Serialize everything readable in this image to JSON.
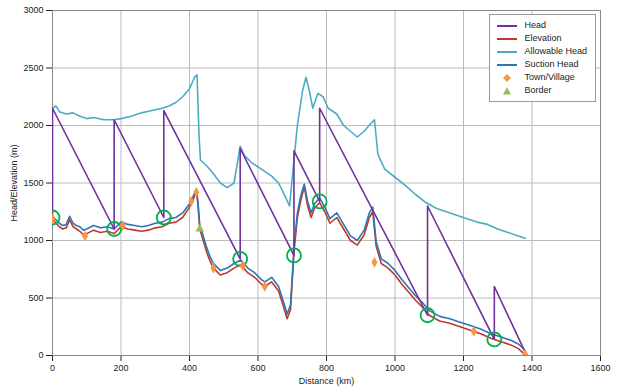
{
  "chart_data": {
    "type": "line",
    "x_label": "Distance (km)",
    "y_label": "Head/Elevation (m)",
    "xlim": [
      0,
      1600
    ],
    "xticks": [
      0,
      200,
      400,
      600,
      800,
      1000,
      1200,
      1400,
      1600
    ],
    "ylim": [
      0,
      3000
    ],
    "yticks": [
      0,
      500,
      1000,
      1500,
      2000,
      2500,
      3000
    ],
    "grid": true,
    "legend": "top-right",
    "series": [
      {
        "name": "Head",
        "color": "#7030a0",
        "type": "line",
        "x": [
          0,
          0,
          180,
          180,
          325,
          325,
          548,
          548,
          705,
          705,
          780,
          780,
          1095,
          1095,
          1290,
          1290,
          1380
        ],
        "values": [
          1200,
          2150,
          1100,
          2050,
          1200,
          2130,
          840,
          1800,
          870,
          1780,
          1340,
          2150,
          350,
          1300,
          140,
          600,
          30
        ]
      },
      {
        "name": "Elevation",
        "color": "#c0392b",
        "type": "line",
        "x": [
          0,
          10,
          20,
          30,
          40,
          50,
          60,
          70,
          80,
          90,
          100,
          120,
          140,
          160,
          180,
          200,
          220,
          240,
          260,
          280,
          300,
          320,
          340,
          360,
          380,
          400,
          410,
          420,
          425,
          430,
          440,
          450,
          460,
          470,
          490,
          510,
          530,
          550,
          570,
          590,
          610,
          620,
          640,
          660,
          675,
          685,
          695,
          705,
          715,
          725,
          735,
          745,
          755,
          765,
          780,
          795,
          810,
          830,
          850,
          870,
          890,
          910,
          925,
          935,
          945,
          960,
          980,
          1000,
          1020,
          1040,
          1060,
          1080,
          1100,
          1130,
          1160,
          1190,
          1220,
          1250,
          1280,
          1310,
          1340,
          1360,
          1375
        ],
        "values": [
          1190,
          1150,
          1120,
          1100,
          1110,
          1180,
          1120,
          1100,
          1080,
          1050,
          1060,
          1090,
          1070,
          1080,
          1060,
          1120,
          1100,
          1090,
          1080,
          1090,
          1110,
          1120,
          1150,
          1160,
          1200,
          1290,
          1350,
          1430,
          1300,
          1100,
          1000,
          900,
          820,
          760,
          700,
          720,
          760,
          790,
          720,
          680,
          620,
          600,
          640,
          560,
          420,
          320,
          400,
          900,
          1200,
          1350,
          1470,
          1300,
          1200,
          1280,
          1330,
          1250,
          1150,
          1200,
          1100,
          1000,
          960,
          1050,
          1200,
          1250,
          950,
          800,
          760,
          700,
          620,
          550,
          480,
          420,
          350,
          300,
          280,
          250,
          220,
          190,
          150,
          120,
          90,
          60,
          20
        ]
      },
      {
        "name": "Allowable Head",
        "color": "#4bacc6",
        "type": "line",
        "x": [
          0,
          10,
          20,
          40,
          60,
          80,
          100,
          120,
          150,
          180,
          200,
          230,
          260,
          290,
          320,
          340,
          360,
          380,
          400,
          415,
          422,
          428,
          432,
          450,
          470,
          490,
          510,
          530,
          548,
          560,
          580,
          610,
          640,
          660,
          680,
          692,
          705,
          715,
          730,
          740,
          750,
          760,
          775,
          790,
          805,
          830,
          850,
          870,
          890,
          910,
          930,
          940,
          950,
          970,
          1000,
          1030,
          1060,
          1090,
          1120,
          1150,
          1180,
          1210,
          1240,
          1270,
          1300,
          1330,
          1360,
          1380
        ],
        "values": [
          2150,
          2170,
          2120,
          2100,
          2110,
          2080,
          2060,
          2070,
          2050,
          2050,
          2060,
          2080,
          2110,
          2130,
          2150,
          2170,
          2200,
          2250,
          2320,
          2420,
          2440,
          1900,
          1700,
          1650,
          1580,
          1500,
          1460,
          1500,
          1820,
          1740,
          1680,
          1620,
          1560,
          1500,
          1380,
          1300,
          1700,
          2000,
          2300,
          2420,
          2300,
          2150,
          2280,
          2250,
          2150,
          2100,
          2000,
          1950,
          1900,
          1950,
          2020,
          2050,
          1750,
          1620,
          1550,
          1480,
          1400,
          1330,
          1280,
          1250,
          1220,
          1190,
          1160,
          1140,
          1100,
          1070,
          1040,
          1020
        ]
      },
      {
        "name": "Suction Head",
        "color": "#2e75b6",
        "type": "line",
        "x": [
          0,
          10,
          20,
          30,
          40,
          50,
          60,
          70,
          80,
          90,
          100,
          120,
          140,
          160,
          180,
          200,
          220,
          240,
          260,
          280,
          300,
          320,
          340,
          360,
          380,
          400,
          410,
          420,
          425,
          430,
          440,
          450,
          460,
          470,
          490,
          510,
          530,
          550,
          570,
          590,
          610,
          620,
          640,
          660,
          675,
          685,
          695,
          705,
          715,
          725,
          735,
          745,
          755,
          765,
          780,
          795,
          810,
          830,
          850,
          870,
          890,
          910,
          925,
          935,
          945,
          960,
          980,
          1000,
          1020,
          1040,
          1060,
          1080,
          1100,
          1130,
          1160,
          1190,
          1220,
          1250,
          1280,
          1310,
          1340,
          1360,
          1375
        ],
        "values": [
          1210,
          1180,
          1150,
          1130,
          1140,
          1210,
          1150,
          1130,
          1120,
          1090,
          1100,
          1130,
          1110,
          1120,
          1100,
          1160,
          1140,
          1130,
          1120,
          1130,
          1150,
          1160,
          1190,
          1200,
          1240,
          1320,
          1380,
          1450,
          1330,
          1130,
          1040,
          940,
          860,
          800,
          740,
          760,
          800,
          830,
          760,
          720,
          660,
          640,
          680,
          600,
          460,
          360,
          440,
          940,
          1240,
          1390,
          1490,
          1340,
          1240,
          1320,
          1370,
          1290,
          1190,
          1240,
          1140,
          1040,
          1000,
          1090,
          1240,
          1290,
          990,
          840,
          800,
          740,
          660,
          590,
          520,
          460,
          390,
          340,
          320,
          290,
          260,
          230,
          190,
          160,
          130,
          100,
          60
        ]
      },
      {
        "name": "Town/Village",
        "color": "#f79646",
        "type": "scatter",
        "marker": "diamond",
        "x": [
          0,
          95,
          205,
          405,
          420,
          470,
          555,
          620,
          940,
          1230,
          1380
        ],
        "values": [
          1190,
          1040,
          1130,
          1340,
          1420,
          760,
          780,
          600,
          810,
          210,
          10
        ]
      },
      {
        "name": "Border",
        "color": "#9bbb59",
        "type": "scatter",
        "marker": "triangle",
        "x": [
          430
        ],
        "values": [
          1100
        ]
      }
    ],
    "circled_points": {
      "color": "#00b050",
      "x": [
        0,
        180,
        325,
        548,
        705,
        780,
        1095,
        1290
      ],
      "values": [
        1200,
        1100,
        1200,
        840,
        870,
        1340,
        350,
        140
      ]
    }
  }
}
